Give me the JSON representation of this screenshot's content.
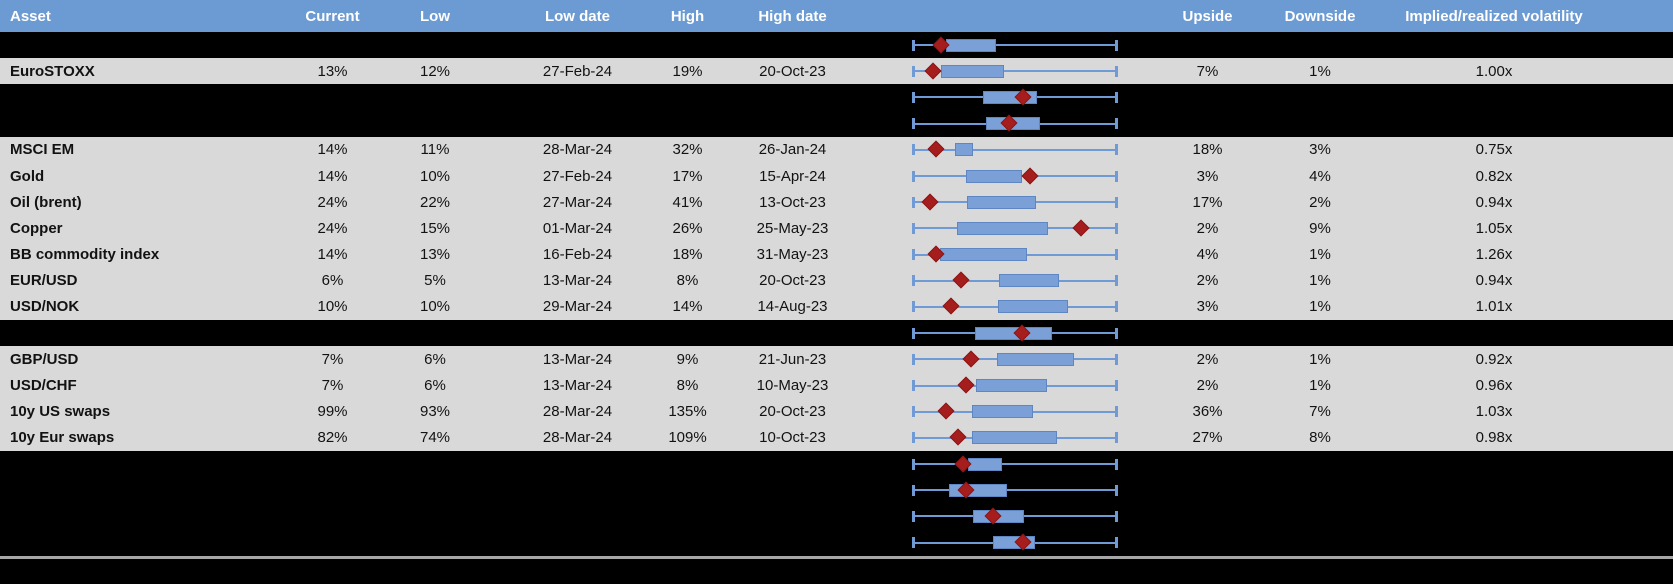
{
  "header": {
    "columns": [
      "Asset",
      "Current",
      "Low",
      "Low date",
      "High",
      "High date",
      "",
      "Upside",
      "Downside",
      "Implied/realized volatility"
    ]
  },
  "colors": {
    "header_bg": "#6C9BD3",
    "header_text": "#FFFFFF",
    "row_gray": "#D9D9D9",
    "row_black": "#000000",
    "whisker_blue": "#6F9AD6",
    "box_fill": "#7BA0D8",
    "box_border": "#5D86C2",
    "marker_dark_red": "#A51D1D",
    "separator_gray": "#A6A6A6"
  },
  "rows": [
    {
      "bg": "black",
      "asset": "",
      "current": "",
      "low": "",
      "low_date": "",
      "high": "",
      "high_date": "",
      "upside": "",
      "downside": "",
      "impl": "",
      "plot": {
        "box": [
          0.161,
          0.405
        ],
        "marker": 0.137
      }
    },
    {
      "bg": "gray",
      "asset": "EuroSTOXX",
      "current": "13%",
      "low": "12%",
      "low_date": "27-Feb-24",
      "high": "19%",
      "high_date": "20-Oct-23",
      "upside": "7%",
      "downside": "1%",
      "impl": "1.00x",
      "plot": {
        "box": [
          0.137,
          0.444
        ],
        "marker": 0.098
      }
    },
    {
      "bg": "black",
      "asset": "",
      "current": "",
      "low": "",
      "low_date": "",
      "high": "",
      "high_date": "",
      "upside": "",
      "downside": "",
      "impl": "",
      "plot": {
        "box": [
          0.341,
          0.605
        ],
        "marker": 0.537
      }
    },
    {
      "bg": "black",
      "asset": "",
      "current": "",
      "low": "",
      "low_date": "",
      "high": "",
      "high_date": "",
      "upside": "",
      "downside": "",
      "impl": "",
      "plot": {
        "box": [
          0.356,
          0.62
        ],
        "marker": 0.473
      }
    },
    {
      "bg": "gray",
      "asset": "MSCI EM",
      "current": "14%",
      "low": "11%",
      "low_date": "28-Mar-24",
      "high": "32%",
      "high_date": "26-Jan-24",
      "upside": "18%",
      "downside": "3%",
      "impl": "0.75x",
      "plot": {
        "box": [
          0.205,
          0.293
        ],
        "marker": 0.117
      }
    },
    {
      "bg": "gray",
      "asset": "Gold",
      "current": "14%",
      "low": "10%",
      "low_date": "27-Feb-24",
      "high": "17%",
      "high_date": "15-Apr-24",
      "upside": "3%",
      "downside": "4%",
      "impl": "0.82x",
      "plot": {
        "box": [
          0.259,
          0.532
        ],
        "marker": 0.571
      }
    },
    {
      "bg": "gray",
      "asset": "Oil (brent)",
      "current": "24%",
      "low": "22%",
      "low_date": "27-Mar-24",
      "high": "41%",
      "high_date": "13-Oct-23",
      "upside": "17%",
      "downside": "2%",
      "impl": "0.94x",
      "plot": {
        "box": [
          0.263,
          0.6
        ],
        "marker": 0.083
      }
    },
    {
      "bg": "gray",
      "asset": "Copper",
      "current": "24%",
      "low": "15%",
      "low_date": "01-Mar-24",
      "high": "26%",
      "high_date": "25-May-23",
      "upside": "2%",
      "downside": "9%",
      "impl": "1.05x",
      "plot": {
        "box": [
          0.215,
          0.659
        ],
        "marker": 0.82
      }
    },
    {
      "bg": "gray",
      "asset": "BB commodity index",
      "current": "14%",
      "low": "13%",
      "low_date": "16-Feb-24",
      "high": "18%",
      "high_date": "31-May-23",
      "upside": "4%",
      "downside": "1%",
      "impl": "1.26x",
      "plot": {
        "box": [
          0.132,
          0.556
        ],
        "marker": 0.117
      }
    },
    {
      "bg": "gray",
      "asset": "EUR/USD",
      "current": "6%",
      "low": "5%",
      "low_date": "13-Mar-24",
      "high": "8%",
      "high_date": "20-Oct-23",
      "upside": "2%",
      "downside": "1%",
      "impl": "0.94x",
      "plot": {
        "box": [
          0.42,
          0.712
        ],
        "marker": 0.239
      }
    },
    {
      "bg": "gray",
      "asset": "USD/NOK",
      "current": "10%",
      "low": "10%",
      "low_date": "29-Mar-24",
      "high": "14%",
      "high_date": "14-Aug-23",
      "upside": "3%",
      "downside": "1%",
      "impl": "1.01x",
      "plot": {
        "box": [
          0.415,
          0.756
        ],
        "marker": 0.19
      }
    },
    {
      "bg": "black",
      "asset": "",
      "current": "",
      "low": "",
      "low_date": "",
      "high": "",
      "high_date": "",
      "upside": "",
      "downside": "",
      "impl": "",
      "plot": {
        "box": [
          0.302,
          0.678
        ],
        "marker": 0.532
      }
    },
    {
      "bg": "gray",
      "asset": "GBP/USD",
      "current": "7%",
      "low": "6%",
      "low_date": "13-Mar-24",
      "high": "9%",
      "high_date": "21-Jun-23",
      "upside": "2%",
      "downside": "1%",
      "impl": "0.92x",
      "plot": {
        "box": [
          0.41,
          0.785
        ],
        "marker": 0.283
      }
    },
    {
      "bg": "gray",
      "asset": "USD/CHF",
      "current": "7%",
      "low": "6%",
      "low_date": "13-Mar-24",
      "high": "8%",
      "high_date": "10-May-23",
      "upside": "2%",
      "downside": "1%",
      "impl": "0.96x",
      "plot": {
        "box": [
          0.307,
          0.654
        ],
        "marker": 0.259
      }
    },
    {
      "bg": "gray",
      "asset": "10y US swaps",
      "current": "99%",
      "low": "93%",
      "low_date": "28-Mar-24",
      "high": "135%",
      "high_date": "20-Oct-23",
      "upside": "36%",
      "downside": "7%",
      "impl": "1.03x",
      "plot": {
        "box": [
          0.288,
          0.585
        ],
        "marker": 0.161
      }
    },
    {
      "bg": "gray",
      "asset": "10y Eur swaps",
      "current": "82%",
      "low": "74%",
      "low_date": "28-Mar-24",
      "high": "109%",
      "high_date": "10-Oct-23",
      "upside": "27%",
      "downside": "8%",
      "impl": "0.98x",
      "plot": {
        "box": [
          0.288,
          0.702
        ],
        "marker": 0.224
      }
    },
    {
      "bg": "black",
      "asset": "",
      "current": "",
      "low": "",
      "low_date": "",
      "high": "",
      "high_date": "",
      "upside": "",
      "downside": "",
      "impl": "",
      "plot": {
        "box": [
          0.268,
          0.434
        ],
        "marker": 0.244
      }
    },
    {
      "bg": "black",
      "asset": "",
      "current": "",
      "low": "",
      "low_date": "",
      "high": "",
      "high_date": "",
      "upside": "",
      "downside": "",
      "impl": "",
      "plot": {
        "box": [
          0.176,
          0.459
        ],
        "marker": 0.263
      }
    },
    {
      "bg": "black",
      "asset": "",
      "current": "",
      "low": "",
      "low_date": "",
      "high": "",
      "high_date": "",
      "upside": "",
      "downside": "",
      "impl": "",
      "plot": {
        "box": [
          0.293,
          0.541
        ],
        "marker": 0.395
      }
    },
    {
      "bg": "black",
      "asset": "",
      "current": "",
      "low": "",
      "low_date": "",
      "high": "",
      "high_date": "",
      "upside": "",
      "downside": "",
      "impl": "",
      "plot": {
        "box": [
          0.39,
          0.595
        ],
        "marker": 0.537
      }
    }
  ],
  "chart_data": {
    "type": "boxplot",
    "orientation": "horizontal",
    "note": "One mini box-whisker per table row; whiskers span the full 1y low-high range normalized to [0,1]; blue box = interquartile band; dark red diamond = current level.",
    "whisker_range": [
      0,
      1
    ],
    "series": [
      {
        "name": "row-1",
        "box": [
          0.161,
          0.405
        ],
        "marker": 0.137
      },
      {
        "name": "EuroSTOXX",
        "box": [
          0.137,
          0.444
        ],
        "marker": 0.098
      },
      {
        "name": "row-3",
        "box": [
          0.341,
          0.605
        ],
        "marker": 0.537
      },
      {
        "name": "row-4",
        "box": [
          0.356,
          0.62
        ],
        "marker": 0.473
      },
      {
        "name": "MSCI EM",
        "box": [
          0.205,
          0.293
        ],
        "marker": 0.117
      },
      {
        "name": "Gold",
        "box": [
          0.259,
          0.532
        ],
        "marker": 0.571
      },
      {
        "name": "Oil (brent)",
        "box": [
          0.263,
          0.6
        ],
        "marker": 0.083
      },
      {
        "name": "Copper",
        "box": [
          0.215,
          0.659
        ],
        "marker": 0.82
      },
      {
        "name": "BB commodity index",
        "box": [
          0.132,
          0.556
        ],
        "marker": 0.117
      },
      {
        "name": "EUR/USD",
        "box": [
          0.42,
          0.712
        ],
        "marker": 0.239
      },
      {
        "name": "USD/NOK",
        "box": [
          0.415,
          0.756
        ],
        "marker": 0.19
      },
      {
        "name": "row-12",
        "box": [
          0.302,
          0.678
        ],
        "marker": 0.532
      },
      {
        "name": "GBP/USD",
        "box": [
          0.41,
          0.785
        ],
        "marker": 0.283
      },
      {
        "name": "USD/CHF",
        "box": [
          0.307,
          0.654
        ],
        "marker": 0.259
      },
      {
        "name": "10y US swaps",
        "box": [
          0.288,
          0.585
        ],
        "marker": 0.161
      },
      {
        "name": "10y Eur swaps",
        "box": [
          0.288,
          0.702
        ],
        "marker": 0.224
      },
      {
        "name": "row-17",
        "box": [
          0.268,
          0.434
        ],
        "marker": 0.244
      },
      {
        "name": "row-18",
        "box": [
          0.176,
          0.459
        ],
        "marker": 0.263
      },
      {
        "name": "row-19",
        "box": [
          0.293,
          0.541
        ],
        "marker": 0.395
      },
      {
        "name": "row-20",
        "box": [
          0.39,
          0.595
        ],
        "marker": 0.537
      }
    ]
  }
}
